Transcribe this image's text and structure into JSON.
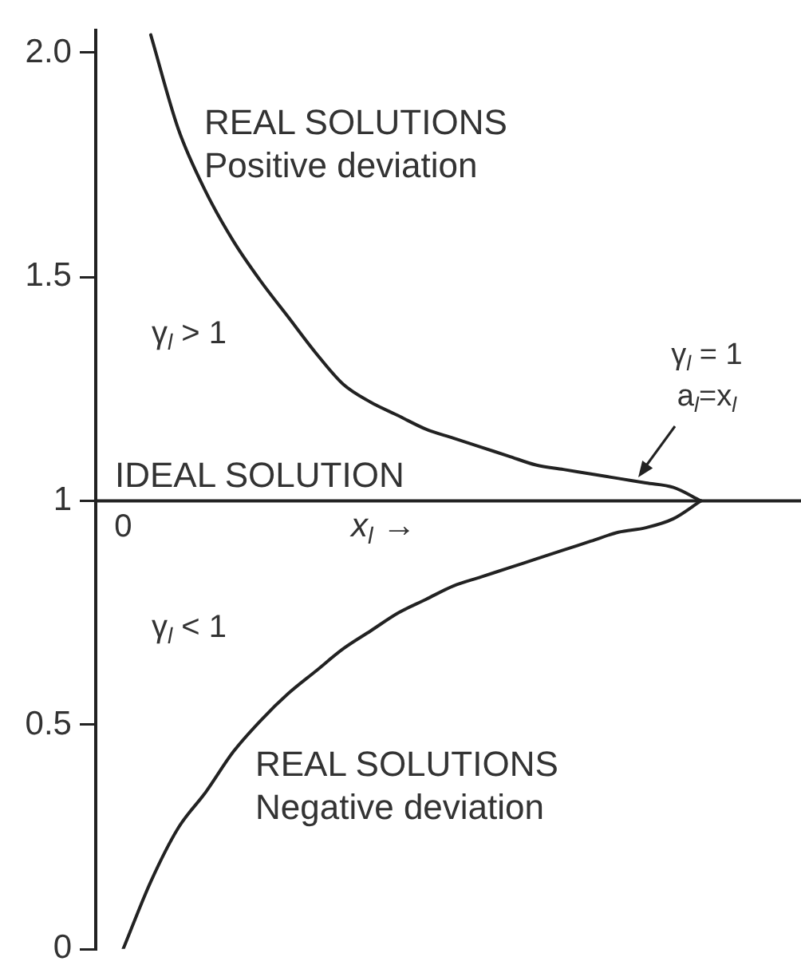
{
  "chart_data": {
    "type": "line",
    "categories": [
      null,
      "0",
      null,
      null,
      null,
      null,
      null,
      null,
      null,
      null,
      null,
      null,
      null,
      null,
      null,
      null,
      null,
      null,
      null,
      null,
      null,
      null,
      null,
      null,
      null,
      null
    ],
    "series": [
      {
        "color": "#222222",
        "values": [
          null,
          null,
          2.04,
          1.83,
          1.69,
          1.58,
          1.49,
          1.41,
          1.33,
          1.26,
          1.22,
          1.19,
          1.16,
          1.14,
          1.12,
          1.1,
          1.08,
          1.07,
          1.06,
          1.05,
          1.04,
          1.03,
          1,
          null,
          null,
          null
        ]
      },
      {
        "color": "#222222",
        "values": [
          null,
          0,
          0.15,
          0.27,
          0.35,
          0.44,
          0.51,
          0.57,
          0.62,
          0.67,
          0.71,
          0.75,
          0.78,
          0.81,
          0.83,
          0.85,
          0.87,
          0.89,
          0.91,
          0.93,
          0.94,
          0.96,
          1,
          null,
          null,
          null
        ]
      }
    ],
    "xlabel": "x$_{l}$ →",
    "ylim": [
      0,
      2.05
    ],
    "yticks": [
      0,
      0.5,
      1,
      1.5,
      {
        "value": 2,
        "label": "2.0"
      }
    ],
    "ref_lines": [
      {
        "axis": "y",
        "value": 1,
        "label": "IDEAL SOLUTION"
      }
    ],
    "annotations": [
      "REAL SOLUTIONS\nPositive deviation",
      "γ$_{l}$ > 1",
      "γ$_{l}$ = 1\na$_{l}$=x$_{l}$",
      "γ$_{l}$ < 1",
      "REAL SOLUTIONS\nNegative deviation"
    ],
    "marker": "none",
    "line_style": "solid"
  }
}
